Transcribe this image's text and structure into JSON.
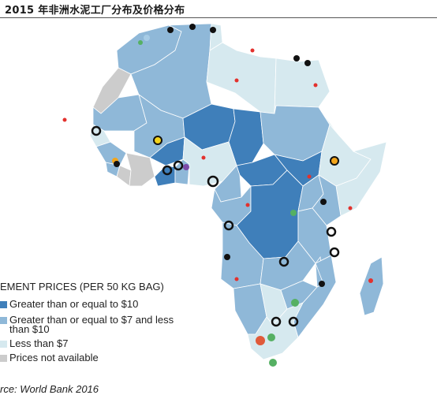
{
  "title": "2015 年非洲水泥工厂分布及价格分布",
  "legend": {
    "title": "EMENT PRICES (PER 50 KG BAG)",
    "items": [
      {
        "label": "Greater than or equal to $10",
        "color": "#3f7fba"
      },
      {
        "label": "Greater than or equal to $7 and less than $10",
        "color": "#8fb8d8"
      },
      {
        "label": "Less than $7",
        "color": "#d6e9ef"
      },
      {
        "label": "Prices not available",
        "color": "#cccccc"
      }
    ]
  },
  "source": "rce: World Bank 2016",
  "colors": {
    "high": "#3f7fba",
    "mid": "#8fb8d8",
    "low": "#d6e9ef",
    "na": "#cccccc",
    "plant": "#e3312d",
    "border": "#ffffff"
  }
}
